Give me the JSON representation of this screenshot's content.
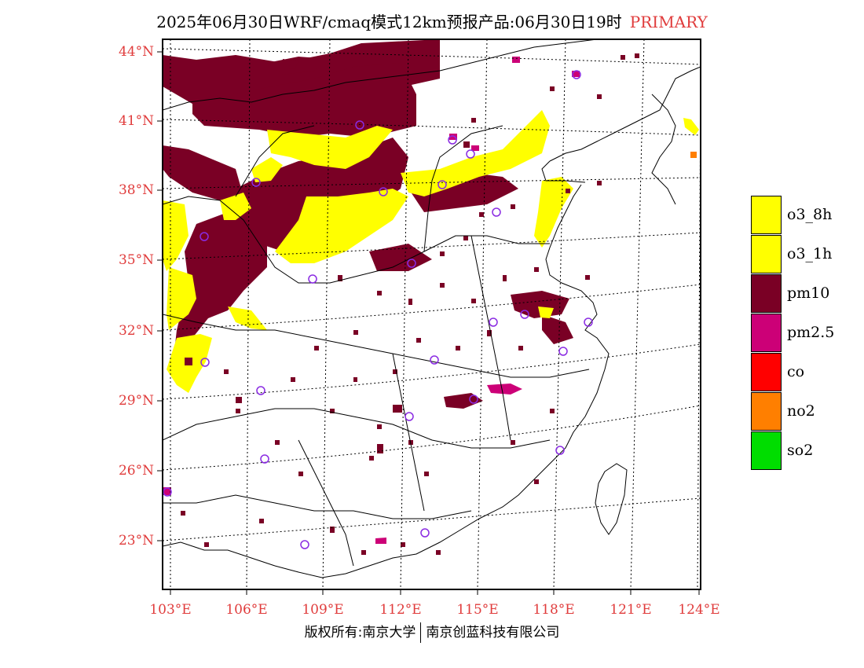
{
  "title": {
    "text": "2025年06月30日WRF/cmaq模式12km预报产品:06月30日19时",
    "tag": "PRIMARY"
  },
  "axes": {
    "lat_labels": [
      "44°N",
      "41°N",
      "38°N",
      "35°N",
      "32°N",
      "29°N",
      "26°N",
      "23°N"
    ],
    "lon_labels": [
      "103°E",
      "106°E",
      "109°E",
      "112°E",
      "115°E",
      "118°E",
      "121°E",
      "124°E"
    ]
  },
  "legend": [
    {
      "label": "o3_8h",
      "color": "#ffff00"
    },
    {
      "label": "o3_1h",
      "color": "#ffff00"
    },
    {
      "label": "pm10",
      "color": "#7a0025"
    },
    {
      "label": "pm2.5",
      "color": "#cc0077"
    },
    {
      "label": "co",
      "color": "#ff0000"
    },
    {
      "label": "no2",
      "color": "#ff7f00"
    },
    {
      "label": "so2",
      "color": "#00dd00"
    }
  ],
  "copyright": {
    "left": "版权所有:南京大学",
    "right": "南京创蓝科技有限公司"
  },
  "colors": {
    "o3": "#ffff00",
    "pm10": "#7a0025",
    "pm25": "#cc0077",
    "no2": "#ff7f00",
    "station": "#8a2be2",
    "label_red": "#e03c3c"
  }
}
